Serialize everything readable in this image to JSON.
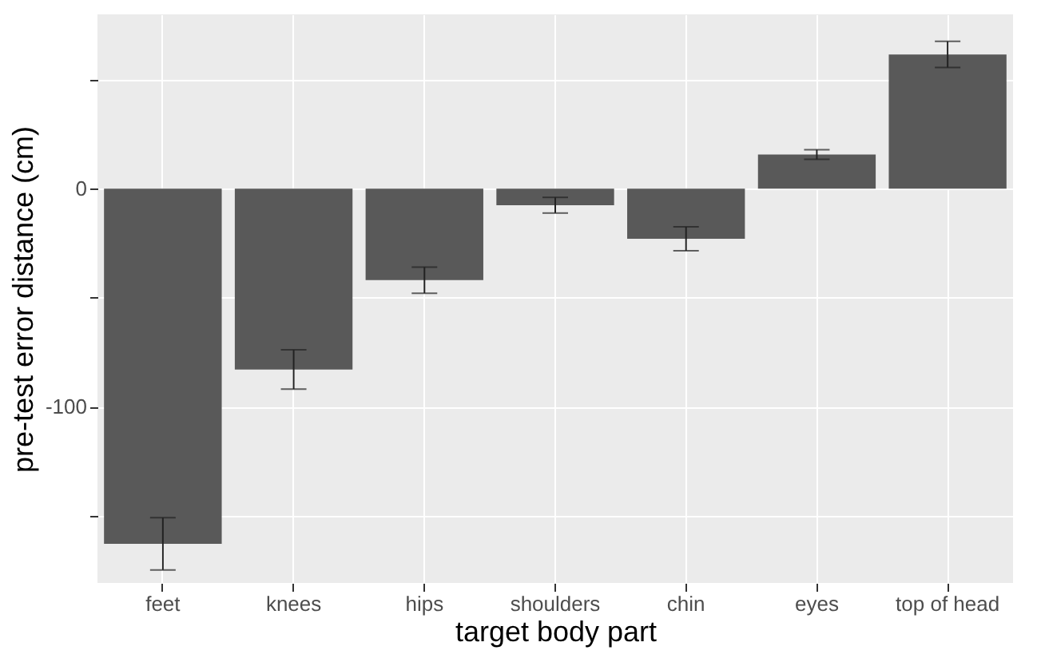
{
  "chart_data": {
    "type": "bar",
    "xlabel": "target body part",
    "ylabel": "pre-test error distance (cm)",
    "categories": [
      "feet",
      "knees",
      "hips",
      "shoulders",
      "chin",
      "eyes",
      "top of head"
    ],
    "values": [
      -163,
      -83,
      -42,
      -7.6,
      -23,
      15.7,
      61.6
    ],
    "errors": [
      12,
      9,
      6,
      3.6,
      5.5,
      2.2,
      6
    ],
    "color": "#595959",
    "ylim": [
      -181,
      80
    ],
    "yticks": [
      {
        "value": -150,
        "label": null
      },
      -100,
      {
        "value": -50,
        "label": null
      },
      0,
      {
        "value": 50,
        "label": null
      }
    ],
    "grid": true
  }
}
